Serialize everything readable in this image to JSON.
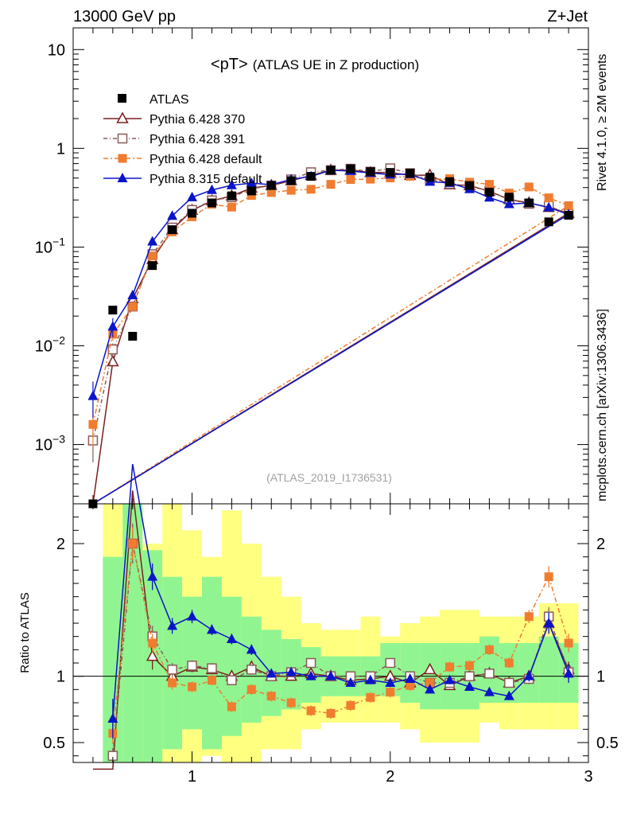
{
  "chart_data": {
    "type": "scatter",
    "header_left": "13000 GeV pp",
    "header_right": "Z+Jet",
    "title": "<pT>",
    "subtitle": "(ATLAS UE in Z production)",
    "analysis_id": "(ATLAS_2019_I1736531)",
    "side_label_top": "Rivet 4.1.0, ≥ 2M events",
    "side_label_bottom": "mcplots.cern.ch [arXiv:1306.3436]",
    "ratio_ylabel": "Ratio to ATLAS",
    "xlim": [
      0.4,
      3.0
    ],
    "ylim_main_log10": [
      -3.6,
      1.22
    ],
    "ylim_ratio": [
      0.35,
      2.3
    ],
    "x_ticks": [
      {
        "v": 1,
        "label": "1"
      },
      {
        "v": 2,
        "label": "2"
      },
      {
        "v": 3,
        "label": "3"
      }
    ],
    "y_ticks_main": [
      {
        "exp": -3,
        "base": "10",
        "sup": "−3"
      },
      {
        "exp": -2,
        "base": "10",
        "sup": "−2"
      },
      {
        "exp": -1,
        "base": "10",
        "sup": "−1"
      },
      {
        "exp": 0,
        "base": "1",
        "sup": ""
      },
      {
        "exp": 1,
        "base": "10",
        "sup": ""
      }
    ],
    "y_ticks_ratio": [
      {
        "v": 0.5,
        "label": "0.5"
      },
      {
        "v": 1,
        "label": "1"
      },
      {
        "v": 2,
        "label": "2"
      }
    ],
    "x": [
      0.5,
      0.6,
      0.7,
      0.8,
      0.9,
      1.0,
      1.1,
      1.2,
      1.3,
      1.4,
      1.5,
      1.6,
      1.7,
      1.8,
      1.9,
      2.0,
      2.1,
      2.2,
      2.3,
      2.4,
      2.5,
      2.6,
      2.7,
      2.8,
      2.9
    ],
    "data": {
      "name": "ATLAS",
      "values": [
        0.00025,
        0.023,
        0.0125,
        0.065,
        0.15,
        0.22,
        0.28,
        0.33,
        0.37,
        0.42,
        0.47,
        0.52,
        0.6,
        0.62,
        0.58,
        0.57,
        0.56,
        0.51,
        0.46,
        0.42,
        0.36,
        0.32,
        0.28,
        0.18,
        0.21
      ],
      "band_inner": [
        null,
        [
          0.25,
          1.9
        ],
        [
          0.25,
          3.0
        ],
        [
          0.35,
          1.95
        ],
        [
          0.45,
          1.75
        ],
        [
          0.6,
          1.6
        ],
        [
          0.45,
          1.75
        ],
        [
          0.55,
          1.6
        ],
        [
          0.65,
          1.45
        ],
        [
          0.7,
          1.35
        ],
        [
          0.75,
          1.28
        ],
        [
          0.8,
          1.22
        ],
        [
          0.85,
          1.15
        ],
        [
          0.85,
          1.15
        ],
        [
          0.85,
          1.15
        ],
        [
          0.85,
          1.25
        ],
        [
          0.8,
          1.25
        ],
        [
          0.75,
          1.25
        ],
        [
          0.75,
          1.25
        ],
        [
          0.75,
          1.25
        ],
        [
          0.8,
          1.3
        ],
        [
          0.8,
          1.25
        ],
        [
          0.8,
          1.25
        ],
        [
          0.8,
          1.3
        ],
        [
          0.8,
          1.25
        ]
      ],
      "band_outer": [
        null,
        [
          0.2,
          2.6
        ],
        [
          0.1,
          3.0
        ],
        [
          0.15,
          2.0
        ],
        [
          0.2,
          2.3
        ],
        [
          0.3,
          2.1
        ],
        [
          0.4,
          1.9
        ],
        [
          0.25,
          2.25
        ],
        [
          0.3,
          2.0
        ],
        [
          0.45,
          1.75
        ],
        [
          0.45,
          1.6
        ],
        [
          0.6,
          1.4
        ],
        [
          0.65,
          1.35
        ],
        [
          0.65,
          1.35
        ],
        [
          0.65,
          1.45
        ],
        [
          0.65,
          1.3
        ],
        [
          0.6,
          1.4
        ],
        [
          0.5,
          1.45
        ],
        [
          0.5,
          1.5
        ],
        [
          0.5,
          1.5
        ],
        [
          0.65,
          1.45
        ],
        [
          0.6,
          1.45
        ],
        [
          0.6,
          1.45
        ],
        [
          0.6,
          1.55
        ],
        [
          0.6,
          1.55
        ]
      ]
    },
    "series": [
      {
        "name": "Pythia 6.428 370",
        "color": "#7a1f1f",
        "marker": "triangle-open",
        "dash": "",
        "ratio": [
          0.3,
          0.3,
          2.4,
          1.15,
          1.0,
          1.07,
          1.05,
          1.0,
          1.07,
          1.0,
          1.0,
          1.02,
          1.0,
          0.97,
          0.98,
          1.0,
          0.95,
          1.05,
          0.93,
          1.0,
          1.02,
          0.95,
          1.0,
          1.4,
          1.05
        ],
        "err": [
          0.0,
          0.0,
          0.12,
          0.1,
          0.05,
          0.04,
          0.03,
          0.03,
          0.03,
          0.03,
          0.03,
          0.03,
          0.03,
          0.03,
          0.03,
          0.03,
          0.03,
          0.03,
          0.03,
          0.03,
          0.03,
          0.03,
          0.04,
          0.07,
          0.06
        ]
      },
      {
        "name": "Pythia 6.428 391",
        "color": "#8b5a5a",
        "marker": "square-open",
        "dash": "5,3,1,3",
        "ratio": [
          null,
          0.4,
          2.0,
          1.3,
          1.05,
          1.08,
          1.06,
          0.97,
          1.05,
          1.0,
          1.03,
          1.1,
          1.0,
          1.0,
          1.0,
          1.1,
          1.0,
          0.95,
          0.95,
          1.0,
          1.02,
          0.95,
          0.98,
          1.45,
          1.03
        ],
        "err": [
          0.0,
          0.06,
          0.15,
          0.08,
          0.05,
          0.04,
          0.03,
          0.03,
          0.03,
          0.03,
          0.03,
          0.03,
          0.03,
          0.03,
          0.03,
          0.03,
          0.03,
          0.03,
          0.03,
          0.03,
          0.03,
          0.03,
          0.04,
          0.07,
          0.06
        ]
      },
      {
        "name": "Pythia 6.428 default",
        "color": "#f07c30",
        "marker": "square-filled",
        "dash": "6,3,2,3",
        "ratio": [
          null,
          0.57,
          2.0,
          1.25,
          0.95,
          0.92,
          0.97,
          0.77,
          0.9,
          0.85,
          0.8,
          0.74,
          0.72,
          0.78,
          0.84,
          0.88,
          0.93,
          0.95,
          1.07,
          1.08,
          1.2,
          1.1,
          1.45,
          1.75,
          1.25
        ],
        "err": [
          0.0,
          0.08,
          0.12,
          0.07,
          0.05,
          0.04,
          0.04,
          0.04,
          0.04,
          0.04,
          0.04,
          0.04,
          0.04,
          0.04,
          0.04,
          0.04,
          0.04,
          0.04,
          0.04,
          0.04,
          0.04,
          0.04,
          0.05,
          0.08,
          0.07
        ]
      },
      {
        "name": "Pythia 8.315 default",
        "color": "#0a14c8",
        "marker": "triangle-filled",
        "dash": "",
        "ratio": [
          null,
          0.68,
          2.6,
          1.75,
          1.38,
          1.45,
          1.35,
          1.28,
          1.2,
          1.02,
          1.03,
          1.0,
          1.0,
          0.95,
          0.97,
          0.95,
          0.98,
          0.9,
          0.97,
          0.92,
          0.88,
          0.85,
          1.0,
          1.4,
          1.02
        ],
        "err": [
          0.0,
          0.15,
          0.15,
          0.1,
          0.06,
          0.05,
          0.04,
          0.04,
          0.04,
          0.03,
          0.03,
          0.03,
          0.03,
          0.03,
          0.03,
          0.03,
          0.03,
          0.03,
          0.03,
          0.03,
          0.03,
          0.03,
          0.04,
          0.08,
          0.07
        ]
      }
    ],
    "main_first_points": [
      {
        "series": 0,
        "value": 0.00022
      },
      {
        "series": 1,
        "value": 0.0011
      },
      {
        "series": 2,
        "value": 0.0016
      },
      {
        "series": 3,
        "value": 0.0031
      }
    ]
  }
}
